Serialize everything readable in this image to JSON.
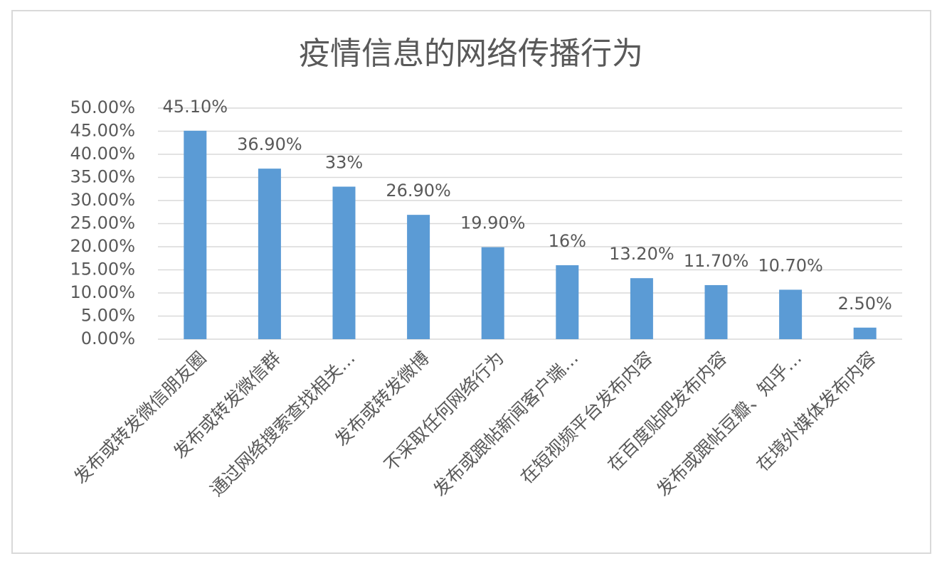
{
  "chart_data": {
    "type": "bar",
    "title": "疫情信息的网络传播行为",
    "categories": [
      "发布或转发微信朋友圈",
      "发布或转发微信群",
      "通过网络搜索查找相关…",
      "发布或转发微博",
      "不采取任何网络行为",
      "发布或跟帖新闻客户端…",
      "在短视频平台发布内容",
      "在百度贴吧发布内容",
      "发布或跟帖豆瓣、知乎…",
      "在境外媒体发布内容"
    ],
    "values": [
      45.1,
      36.9,
      33,
      26.9,
      19.9,
      16,
      13.2,
      11.7,
      10.7,
      2.5
    ],
    "value_labels": [
      "45.10%",
      "36.90%",
      "33%",
      "26.90%",
      "19.90%",
      "16%",
      "13.20%",
      "11.70%",
      "10.70%",
      "2.50%"
    ],
    "color": "#5b9bd5",
    "ylim": [
      0,
      50
    ],
    "yticks": [
      {
        "value": 0,
        "label": "0.00%"
      },
      {
        "value": 5,
        "label": "5.00%"
      },
      {
        "value": 10,
        "label": "10.00%"
      },
      {
        "value": 15,
        "label": "15.00%"
      },
      {
        "value": 20,
        "label": "20.00%"
      },
      {
        "value": 25,
        "label": "25.00%"
      },
      {
        "value": 30,
        "label": "30.00%"
      },
      {
        "value": 35,
        "label": "35.00%"
      },
      {
        "value": 40,
        "label": "40.00%"
      },
      {
        "value": 45,
        "label": "45.00%"
      },
      {
        "value": 50,
        "label": "50.00%"
      }
    ],
    "grid": true
  }
}
